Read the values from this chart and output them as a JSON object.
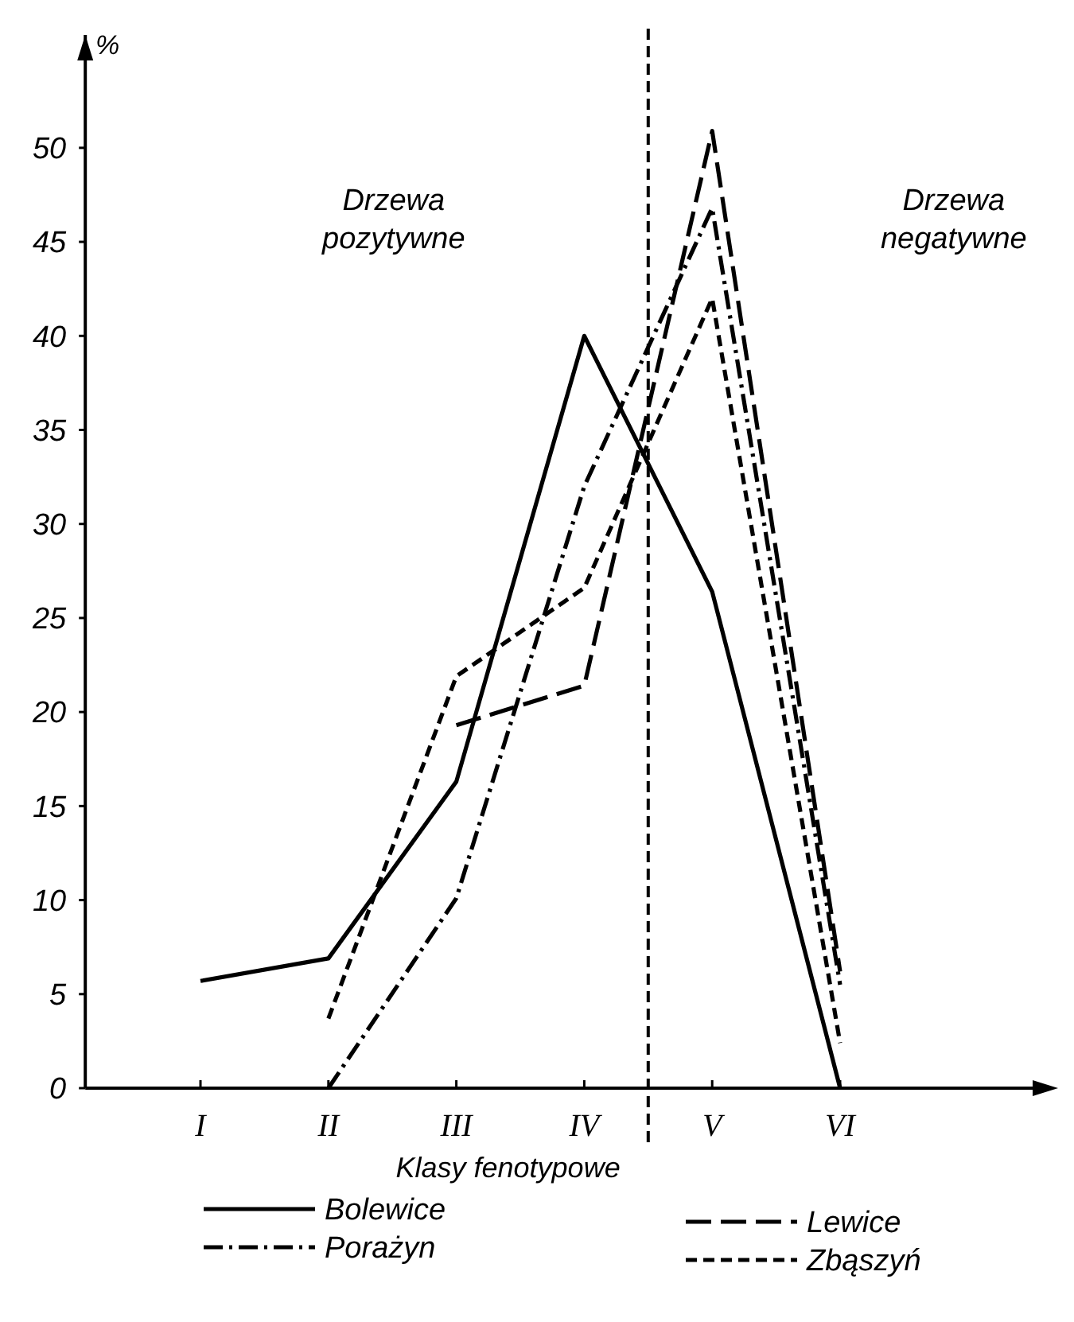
{
  "chart_data": {
    "type": "line",
    "ylabel": "%",
    "xlabel": "Klasy fenotypowe",
    "categories": [
      "I",
      "II",
      "III",
      "IV",
      "V",
      "VI"
    ],
    "ylim": [
      0,
      56
    ],
    "yticks": [
      0,
      5,
      10,
      15,
      20,
      25,
      30,
      35,
      40,
      45,
      50
    ],
    "grid": false,
    "legend": "bottom",
    "marker": "none",
    "annotations": [
      "Drzewa pozytywne",
      "Drzewa negatywne"
    ],
    "series": [
      {
        "name": "Bolewice",
        "color": "#000000",
        "line_style": "solid",
        "values": [
          5.7,
          6.9,
          16.3,
          40,
          26.4,
          0
        ]
      },
      {
        "name": "Lewice",
        "color": "#000000",
        "line_style": "longdash",
        "values": [
          null,
          null,
          19.3,
          21.4,
          50.9,
          6.2
        ]
      },
      {
        "name": "Porażyn",
        "color": "#000000",
        "line_style": "dashdot",
        "values": [
          null,
          0,
          10.1,
          32,
          46.8,
          5.5
        ]
      },
      {
        "name": "Zbąszyń",
        "color": "#000000",
        "line_style": "dashed",
        "values": [
          null,
          3.7,
          21.9,
          26.6,
          42,
          2.4
        ]
      }
    ]
  }
}
